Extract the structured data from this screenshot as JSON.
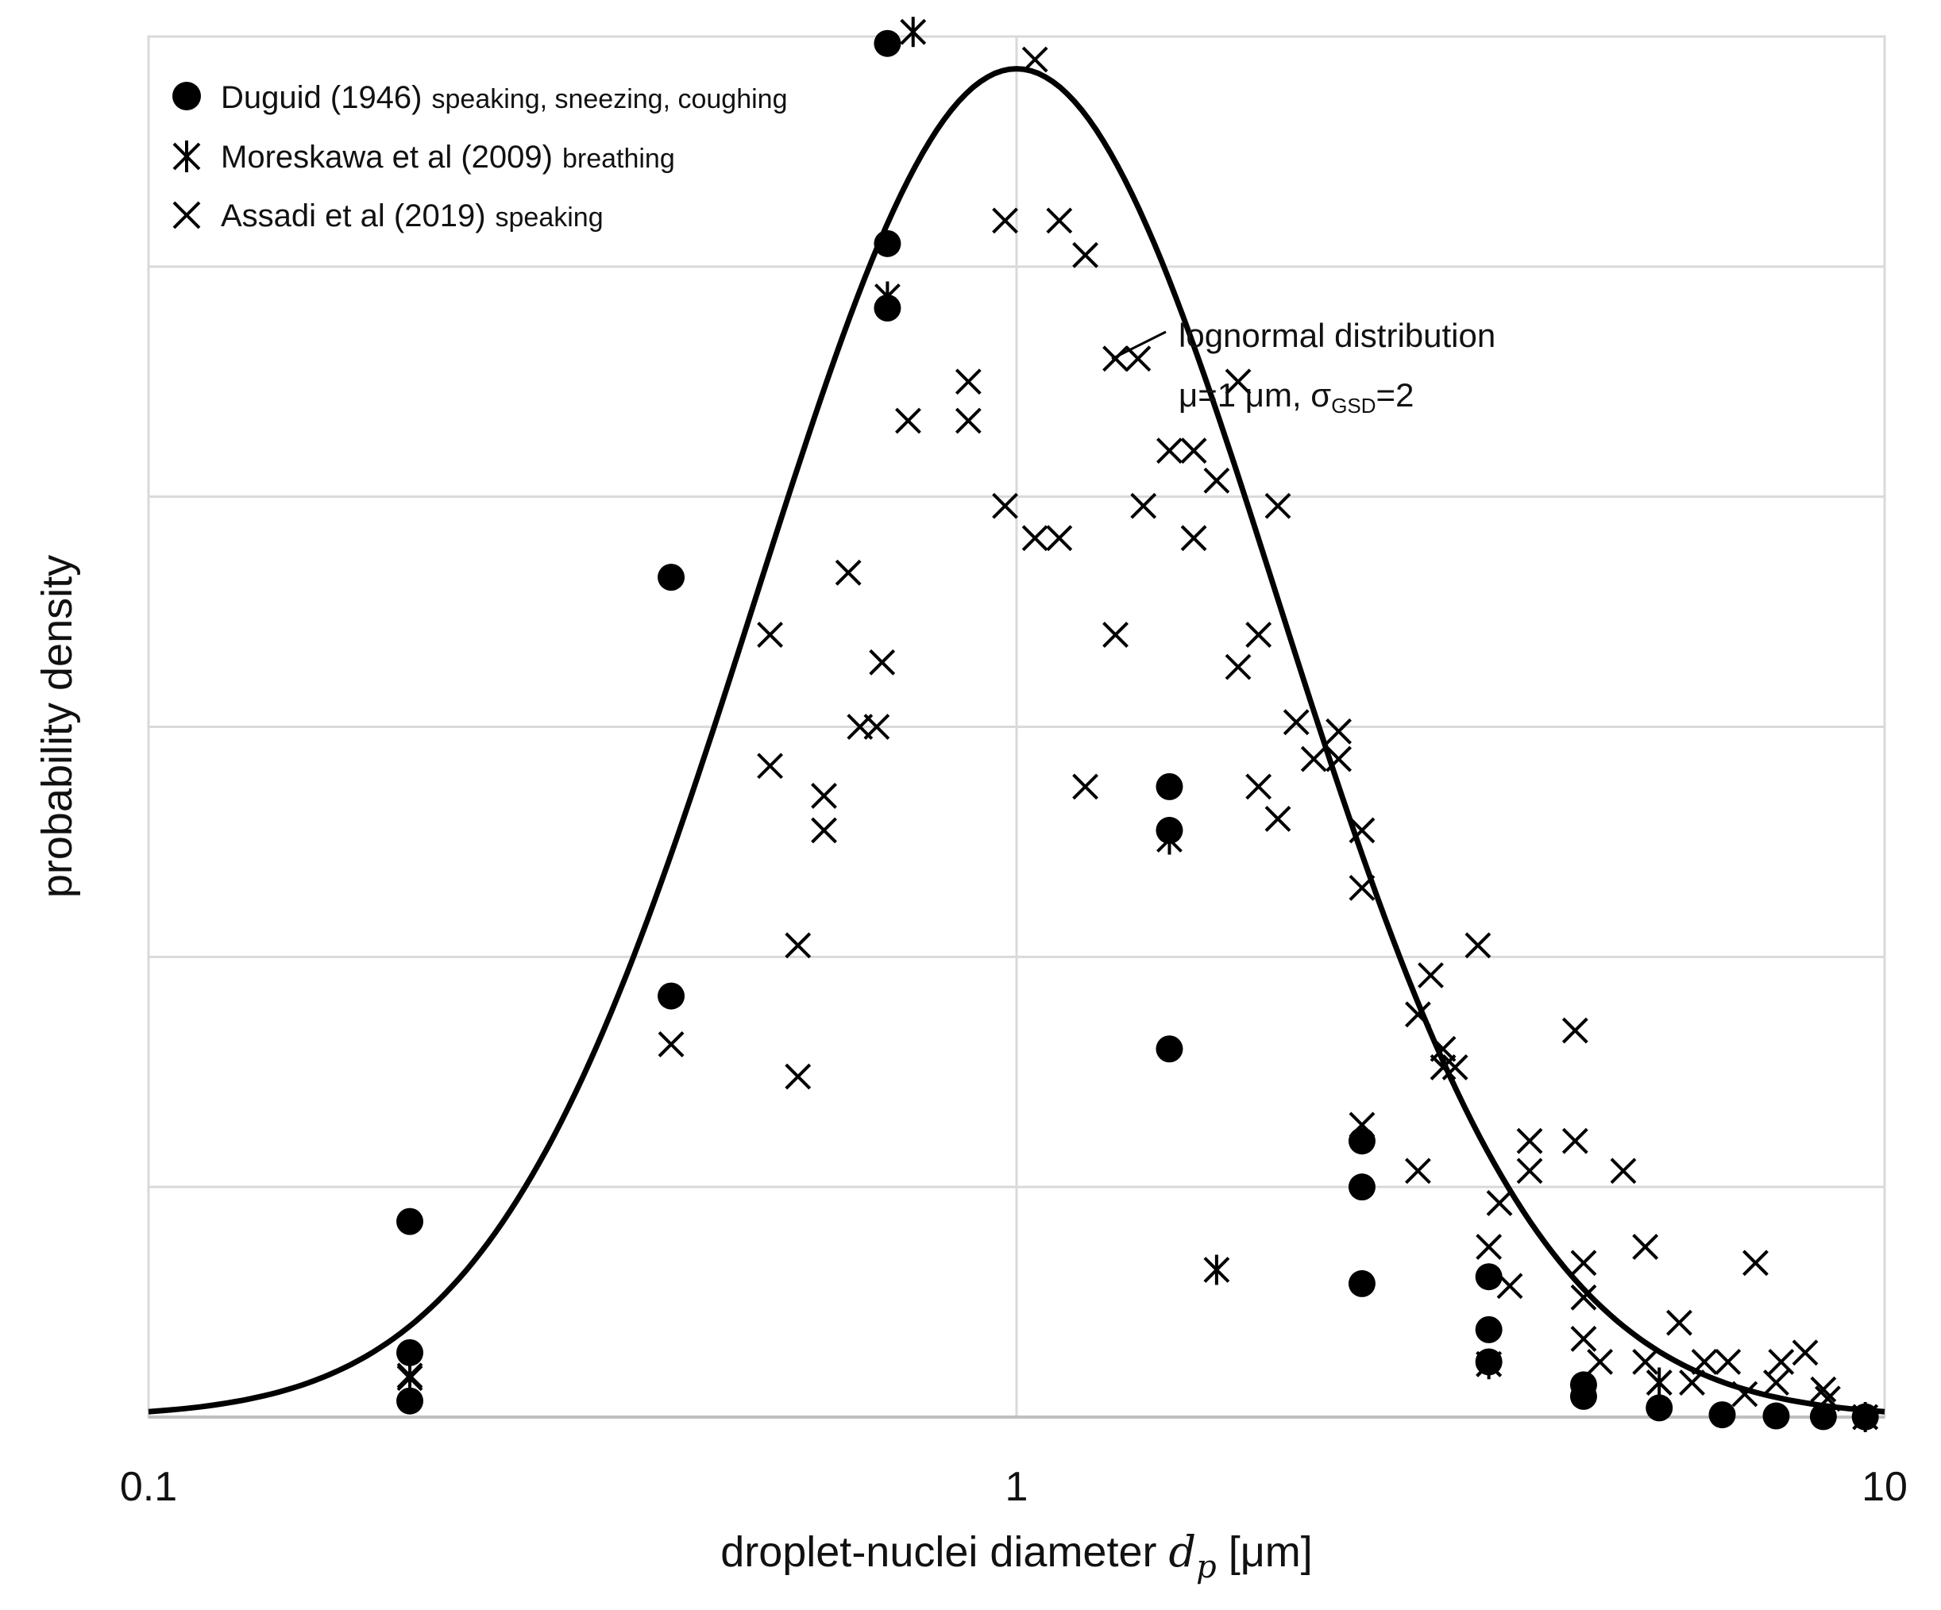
{
  "chart_data": {
    "type": "scatter",
    "xscale": "log",
    "xlim": [
      0.1,
      10
    ],
    "ylim": [
      0,
      6
    ],
    "x_ticks": [
      "0.1",
      "1",
      "10"
    ],
    "grid": true,
    "legend_position": "top-left",
    "xlabel_prefix": "droplet-nuclei diameter ",
    "xlabel_var": "d",
    "xlabel_sub": "p",
    "xlabel_suffix": " [μm]",
    "ylabel": "probability density",
    "series": [
      {
        "name": "Duguid (1946)",
        "note": "speaking, sneezing, coughing",
        "marker": "circle",
        "points": [
          [
            0.2,
            0.85
          ],
          [
            0.2,
            0.28
          ],
          [
            0.2,
            0.07
          ],
          [
            0.4,
            3.65
          ],
          [
            0.4,
            1.83
          ],
          [
            0.71,
            5.97
          ],
          [
            0.71,
            5.1
          ],
          [
            0.71,
            4.82
          ],
          [
            1.5,
            2.74
          ],
          [
            1.5,
            2.55
          ],
          [
            1.5,
            1.6
          ],
          [
            2.5,
            1.2
          ],
          [
            2.5,
            1.0
          ],
          [
            2.5,
            0.58
          ],
          [
            3.5,
            0.61
          ],
          [
            3.5,
            0.38
          ],
          [
            3.5,
            0.24
          ],
          [
            4.5,
            0.14
          ],
          [
            4.5,
            0.09
          ],
          [
            5.5,
            0.04
          ],
          [
            6.5,
            0.01
          ],
          [
            7.5,
            0.005
          ],
          [
            8.5,
            0.002
          ],
          [
            9.5,
            0.001
          ]
        ]
      },
      {
        "name": "Moreskawa et al (2009)",
        "note": "breathing",
        "marker": "asterisk",
        "points": [
          [
            0.2,
            0.17
          ],
          [
            0.71,
            4.87
          ],
          [
            0.76,
            6.02
          ],
          [
            1.5,
            2.51
          ],
          [
            1.7,
            0.64
          ],
          [
            3.5,
            0.23
          ],
          [
            5.5,
            0.15
          ],
          [
            9.5,
            0.0
          ]
        ]
      },
      {
        "name": "Assadi et al (2019)",
        "note": "speaking",
        "marker": "x",
        "points": [
          [
            0.2,
            0.18
          ],
          [
            0.4,
            1.62
          ],
          [
            0.52,
            3.4
          ],
          [
            0.52,
            2.83
          ],
          [
            0.56,
            2.05
          ],
          [
            0.56,
            1.48
          ],
          [
            0.6,
            2.7
          ],
          [
            0.6,
            2.55
          ],
          [
            0.64,
            3.67
          ],
          [
            0.66,
            3.0
          ],
          [
            0.69,
            3.0
          ],
          [
            0.7,
            3.28
          ],
          [
            0.75,
            4.33
          ],
          [
            0.88,
            4.5
          ],
          [
            0.88,
            4.33
          ],
          [
            0.97,
            5.2
          ],
          [
            0.97,
            3.96
          ],
          [
            1.05,
            5.9
          ],
          [
            1.05,
            3.82
          ],
          [
            1.12,
            5.2
          ],
          [
            1.12,
            3.82
          ],
          [
            1.2,
            5.05
          ],
          [
            1.2,
            2.74
          ],
          [
            1.3,
            4.6
          ],
          [
            1.3,
            3.4
          ],
          [
            1.38,
            4.6
          ],
          [
            1.4,
            3.96
          ],
          [
            1.5,
            4.2
          ],
          [
            1.6,
            4.2
          ],
          [
            1.6,
            3.82
          ],
          [
            1.7,
            4.07
          ],
          [
            1.8,
            4.5
          ],
          [
            1.8,
            3.26
          ],
          [
            1.9,
            3.4
          ],
          [
            1.9,
            2.74
          ],
          [
            2.0,
            3.96
          ],
          [
            2.0,
            2.6
          ],
          [
            2.1,
            3.02
          ],
          [
            2.2,
            2.86
          ],
          [
            2.35,
            2.98
          ],
          [
            2.35,
            2.86
          ],
          [
            2.5,
            2.55
          ],
          [
            2.5,
            2.3
          ],
          [
            2.5,
            1.27
          ],
          [
            2.9,
            1.75
          ],
          [
            2.9,
            1.07
          ],
          [
            3.0,
            1.92
          ],
          [
            3.1,
            1.6
          ],
          [
            3.1,
            1.52
          ],
          [
            3.2,
            1.52
          ],
          [
            3.4,
            2.05
          ],
          [
            3.5,
            0.74
          ],
          [
            3.5,
            0.23
          ],
          [
            3.6,
            0.93
          ],
          [
            3.7,
            0.57
          ],
          [
            3.9,
            1.07
          ],
          [
            3.9,
            1.2
          ],
          [
            4.4,
            1.68
          ],
          [
            4.4,
            1.2
          ],
          [
            4.5,
            0.67
          ],
          [
            4.5,
            0.52
          ],
          [
            4.5,
            0.34
          ],
          [
            4.7,
            0.24
          ],
          [
            5.0,
            1.07
          ],
          [
            5.3,
            0.74
          ],
          [
            5.3,
            0.24
          ],
          [
            5.5,
            0.15
          ],
          [
            5.8,
            0.41
          ],
          [
            6.0,
            0.15
          ],
          [
            6.2,
            0.24
          ],
          [
            6.6,
            0.24
          ],
          [
            6.9,
            0.1
          ],
          [
            7.1,
            0.67
          ],
          [
            7.5,
            0.15
          ],
          [
            7.6,
            0.24
          ],
          [
            8.1,
            0.28
          ],
          [
            8.5,
            0.12
          ],
          [
            8.6,
            0.08
          ],
          [
            9.5,
            0.0
          ]
        ]
      }
    ],
    "curve": {
      "type": "lognormal",
      "label_line1": "lognormal distribution",
      "label_line2_a": "μ=1 μm, σ",
      "label_line2_sub": "GSD",
      "label_line2_b": "=2",
      "median": 1,
      "gsd": 2,
      "peak": 5.86
    }
  }
}
